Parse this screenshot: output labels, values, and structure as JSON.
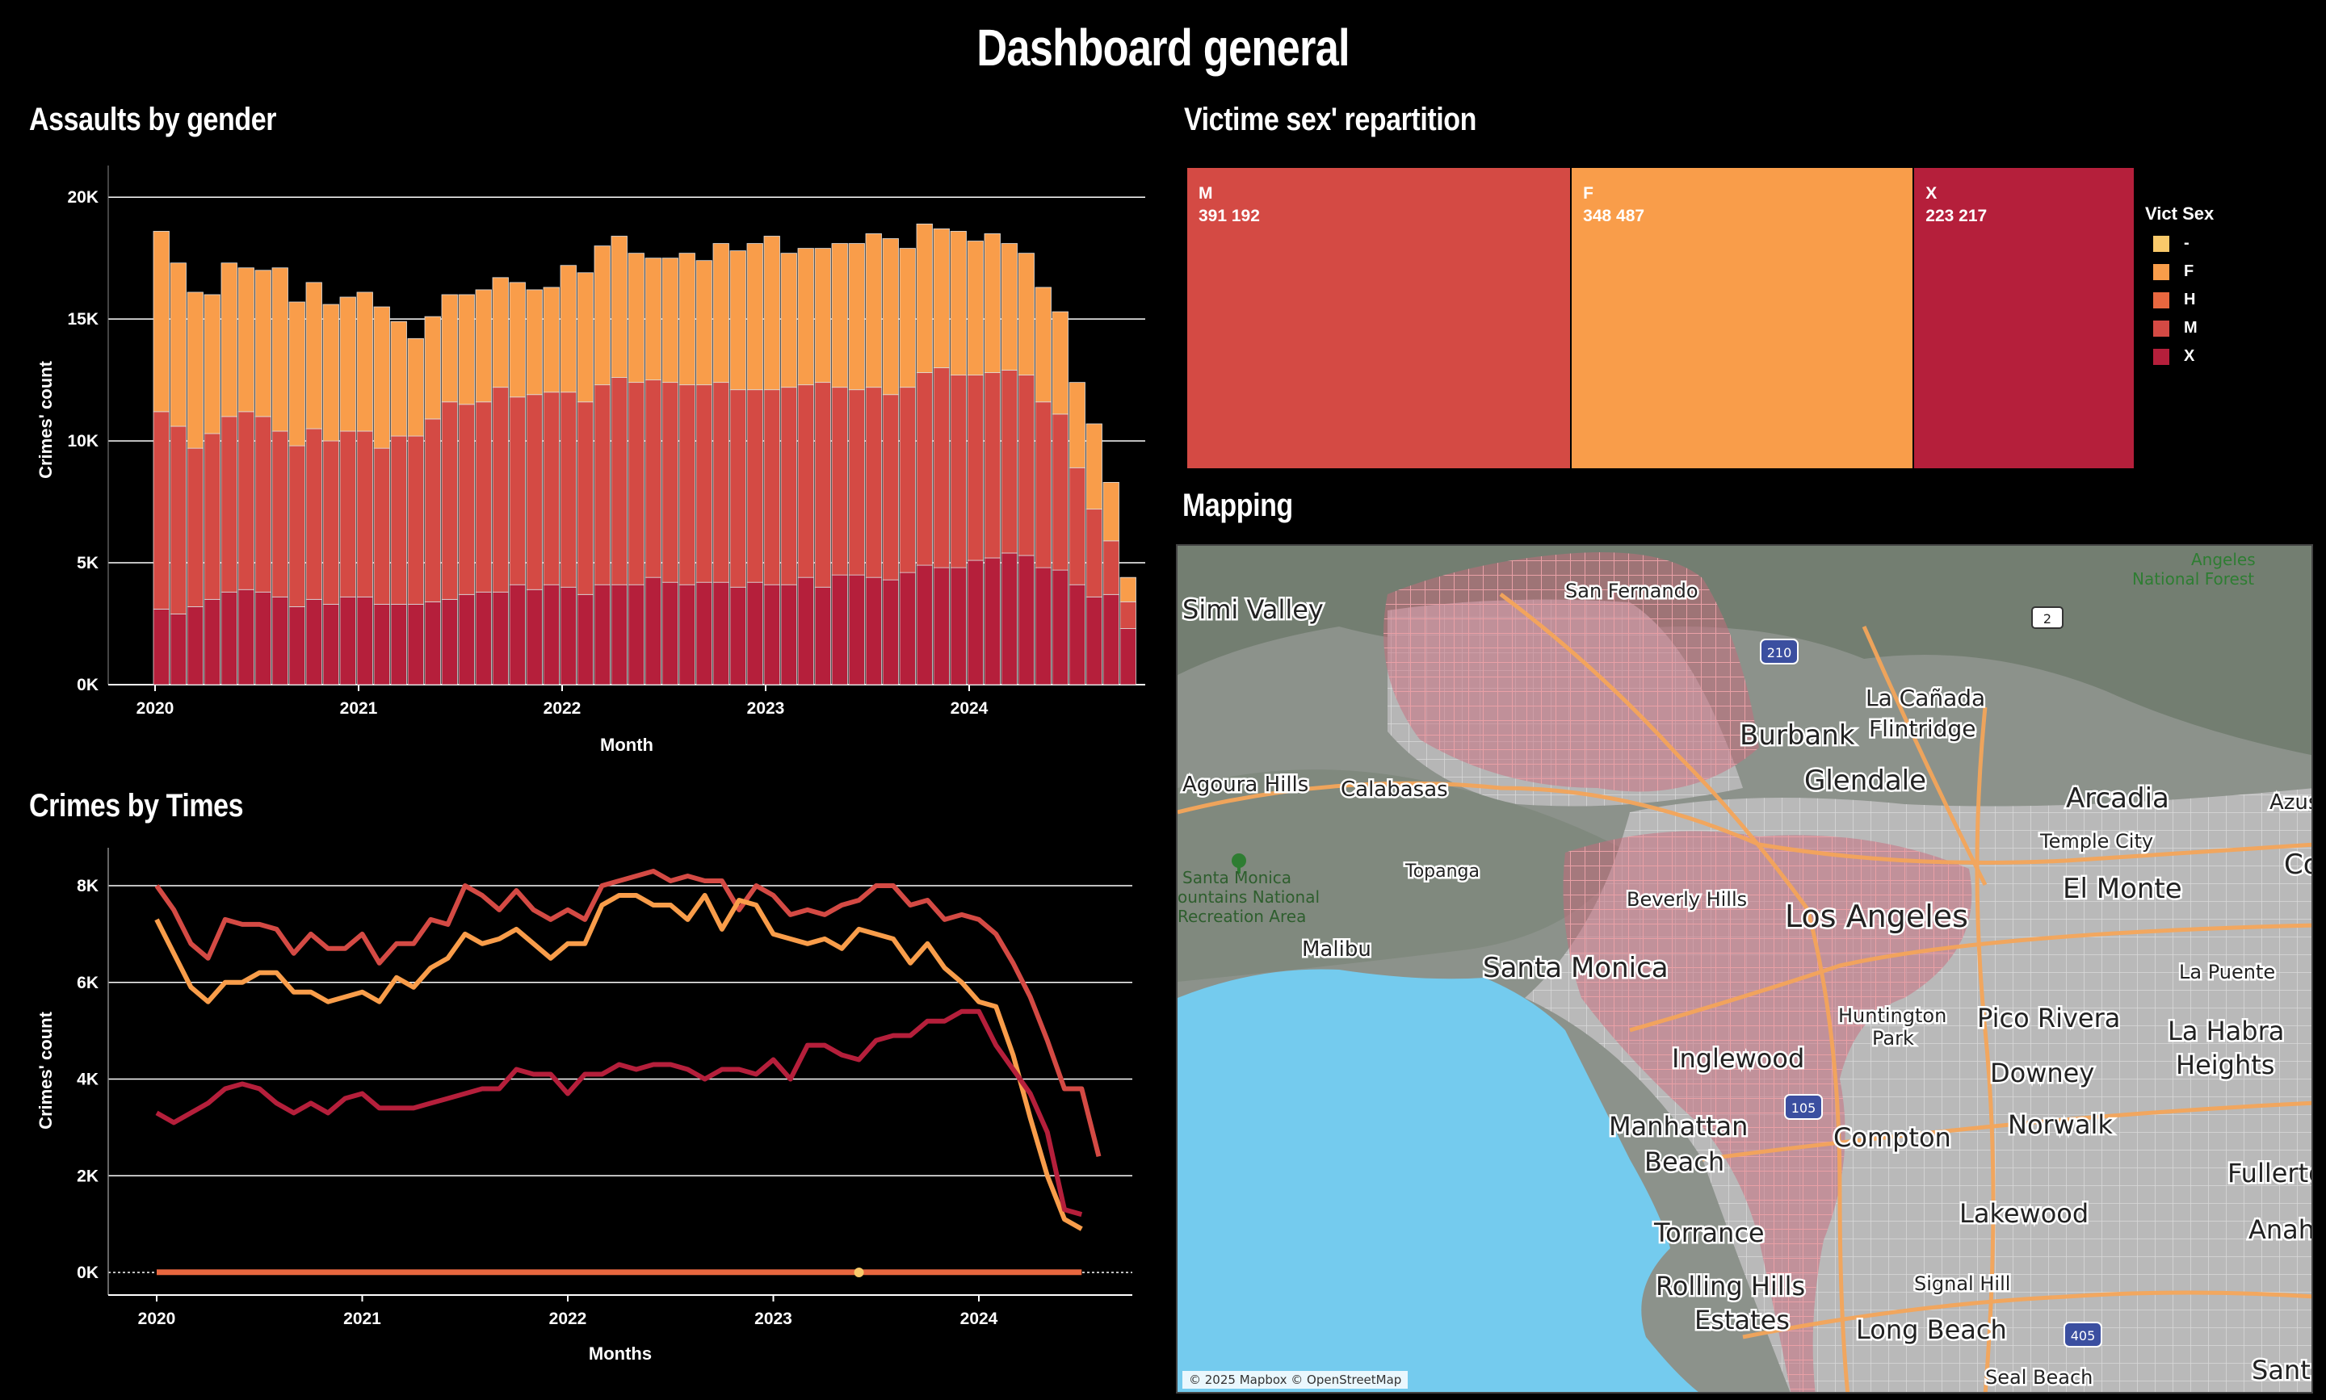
{
  "dashboard": {
    "title": "Dashboard general"
  },
  "panels": {
    "assaults_title": "Assaults by gender",
    "repartition_title": "Victime sex' repartition",
    "mapping_title": "Mapping",
    "times_title": "Crimes by Times"
  },
  "colors": {
    "M": "#d44a44",
    "F": "#f99d4a",
    "X": "#b51f3b",
    "H": "#e8673f",
    "-": "#f9c96a",
    "background": "#000000"
  },
  "chart_data": [
    {
      "type": "bar",
      "stacked": true,
      "title": "Assaults by gender",
      "xlabel": "Month",
      "ylabel": "Crimes' count",
      "ylim": [
        0,
        21000
      ],
      "yticks": [
        "0K",
        "5K",
        "10K",
        "15K",
        "20K"
      ],
      "xticks": [
        "2020",
        "2021",
        "2022",
        "2023",
        "2024"
      ],
      "start_year": 2020,
      "series": [
        {
          "name": "X",
          "color": "#b51f3b",
          "values": [
            3100,
            2900,
            3200,
            3500,
            3800,
            3900,
            3800,
            3600,
            3200,
            3500,
            3300,
            3600,
            3600,
            3300,
            3300,
            3300,
            3400,
            3500,
            3700,
            3800,
            3800,
            4100,
            3900,
            4100,
            4000,
            3700,
            4100,
            4100,
            4100,
            4400,
            4200,
            4100,
            4200,
            4200,
            4000,
            4200,
            4100,
            4100,
            4400,
            4000,
            4500,
            4500,
            4400,
            4300,
            4600,
            4900,
            4800,
            4800,
            5100,
            5200,
            5400,
            5300,
            4800,
            4700,
            4100,
            3600,
            3700,
            2300
          ]
        },
        {
          "name": "M",
          "color": "#d44a44",
          "values": [
            8100,
            7700,
            6500,
            6800,
            7200,
            7300,
            7200,
            6800,
            6600,
            7000,
            6700,
            6800,
            6800,
            6400,
            6900,
            6900,
            7500,
            8100,
            7800,
            7800,
            8400,
            7700,
            8000,
            7900,
            8000,
            7900,
            8200,
            8500,
            8300,
            8100,
            8200,
            8200,
            8100,
            8200,
            8100,
            7900,
            8000,
            8100,
            7900,
            8400,
            7700,
            7600,
            7800,
            7600,
            7600,
            7900,
            8200,
            7900,
            7600,
            7600,
            7500,
            7400,
            6800,
            6400,
            4800,
            3600,
            2200,
            1100
          ]
        },
        {
          "name": "F",
          "color": "#f99d4a",
          "values": [
            7400,
            6700,
            6400,
            5700,
            6300,
            5900,
            6000,
            6700,
            5900,
            6000,
            5600,
            5500,
            5700,
            5800,
            4700,
            4000,
            4200,
            4400,
            4500,
            4600,
            4500,
            4700,
            4300,
            4300,
            5200,
            5300,
            5700,
            5800,
            5300,
            5000,
            5100,
            5400,
            5100,
            5700,
            5700,
            6000,
            6300,
            5500,
            5600,
            5500,
            5900,
            6000,
            6300,
            6400,
            5700,
            6100,
            5700,
            5900,
            5500,
            5700,
            5200,
            5000,
            4700,
            4200,
            3500,
            3500,
            2400,
            1000
          ]
        }
      ]
    },
    {
      "type": "line",
      "title": "Crimes by Times",
      "xlabel": "Months",
      "ylabel": "Crimes' count",
      "ylim": [
        0,
        8800
      ],
      "yticks": [
        "0K",
        "2K",
        "4K",
        "6K",
        "8K"
      ],
      "xticks": [
        "2020",
        "2021",
        "2022",
        "2023",
        "2024"
      ],
      "start_year": 2020,
      "series": [
        {
          "name": "M",
          "color": "#d44a44",
          "values": [
            8000,
            7500,
            6800,
            6500,
            7300,
            7200,
            7200,
            7100,
            6600,
            7000,
            6700,
            6700,
            7000,
            6400,
            6800,
            6800,
            7300,
            7200,
            8000,
            7800,
            7500,
            7900,
            7500,
            7300,
            7500,
            7300,
            8000,
            8100,
            8200,
            8300,
            8100,
            8200,
            8100,
            8100,
            7500,
            8000,
            7800,
            7400,
            7500,
            7400,
            7600,
            7700,
            8000,
            8000,
            7600,
            7700,
            7300,
            7400,
            7300,
            7000,
            6400,
            5700,
            4800,
            3800,
            3800,
            2400
          ]
        },
        {
          "name": "F",
          "color": "#f99d4a",
          "values": [
            7300,
            6600,
            5900,
            5600,
            6000,
            6000,
            6200,
            6200,
            5800,
            5800,
            5600,
            5700,
            5800,
            5600,
            6100,
            5900,
            6300,
            6500,
            7000,
            6800,
            6900,
            7100,
            6800,
            6500,
            6800,
            6800,
            7600,
            7800,
            7800,
            7600,
            7600,
            7300,
            7800,
            7100,
            7700,
            7600,
            7000,
            6900,
            6800,
            6900,
            6700,
            7100,
            7000,
            6900,
            6400,
            6800,
            6300,
            6000,
            5600,
            5500,
            4500,
            3200,
            2000,
            1100,
            900
          ]
        },
        {
          "name": "X",
          "color": "#b51f3b",
          "values": [
            3300,
            3100,
            3300,
            3500,
            3800,
            3900,
            3800,
            3500,
            3300,
            3500,
            3300,
            3600,
            3700,
            3400,
            3400,
            3400,
            3500,
            3600,
            3700,
            3800,
            3800,
            4200,
            4100,
            4100,
            3700,
            4100,
            4100,
            4300,
            4200,
            4300,
            4300,
            4200,
            4000,
            4200,
            4200,
            4100,
            4400,
            4000,
            4700,
            4700,
            4500,
            4400,
            4800,
            4900,
            4900,
            5200,
            5200,
            5400,
            5400,
            4700,
            4200,
            3700,
            2900,
            1300,
            1200
          ]
        },
        {
          "name": "H",
          "color": "#e8673f",
          "values": [
            5,
            5,
            5,
            5,
            5,
            5,
            5,
            5,
            5,
            5,
            5,
            5,
            5,
            5,
            5,
            5,
            5,
            5,
            5,
            5,
            5,
            5,
            5,
            5,
            5,
            5,
            5,
            5,
            5,
            5,
            5,
            5,
            5,
            5,
            5,
            5,
            5,
            5,
            5,
            5,
            5,
            5,
            5,
            5,
            5,
            5,
            5,
            5,
            5,
            5,
            5,
            5,
            5,
            5,
            5
          ]
        },
        {
          "name": "-",
          "color": "#f9c96a",
          "values": [
            0
          ]
        }
      ]
    },
    {
      "type": "treemap",
      "title": "Victime sex' repartition",
      "legend_title": "Vict Sex",
      "items": [
        {
          "label": "M",
          "value": 391192,
          "display": "391 192",
          "color": "#d44a44"
        },
        {
          "label": "F",
          "value": 348487,
          "display": "348 487",
          "color": "#f99d4a"
        },
        {
          "label": "X",
          "value": 223217,
          "display": "223 217",
          "color": "#b51f3b"
        }
      ],
      "legend": [
        {
          "label": "-",
          "color": "#f9c96a"
        },
        {
          "label": "F",
          "color": "#f99d4a"
        },
        {
          "label": "H",
          "color": "#e8673f"
        },
        {
          "label": "M",
          "color": "#d44a44"
        },
        {
          "label": "X",
          "color": "#b51f3b"
        }
      ]
    }
  ],
  "map": {
    "attribution": "© 2025 Mapbox © OpenStreetMap",
    "shield_210": "210",
    "shield_105": "105",
    "shield_405": "405",
    "shield_2": "2",
    "places": {
      "simi_valley": "Simi Valley",
      "san_fernando": "San Fernando",
      "angeles_nf_1": "Angeles",
      "angeles_nf_2": "National Forest",
      "la_canada_1": "La Cañada",
      "la_canada_2": "Flintridge",
      "burbank": "Burbank",
      "glendale": "Glendale",
      "agoura_hills": "Agoura Hills",
      "calabasas": "Calabasas",
      "arcadia": "Arcadia",
      "azusa": "Azusa",
      "temple_city": "Temple City",
      "topanga": "Topanga",
      "santa_monica_mtn_1": "Santa Monica",
      "santa_monica_mtn_2": "ountains National",
      "santa_monica_mtn_3": "Recreation Area",
      "beverly_hills": "Beverly Hills",
      "el_monte": "El Monte",
      "covina": "Covi",
      "los_angeles": "Los Angeles",
      "malibu": "Malibu",
      "santa_monica": "Santa Monica",
      "la_puente": "La Puente",
      "huntington_1": "Huntington",
      "huntington_2": "Park",
      "pico_rivera": "Pico Rivera",
      "la_habra_1": "La Habra",
      "la_habra_2": "Heights",
      "inglewood": "Inglewood",
      "downey": "Downey",
      "manhattan_1": "Manhattan",
      "manhattan_2": "Beach",
      "compton": "Compton",
      "norwalk": "Norwalk",
      "fullerton": "Fullerton",
      "lakewood": "Lakewood",
      "anaheim": "Anahei",
      "torrance": "Torrance",
      "rolling_1": "Rolling Hills",
      "rolling_2": "Estates",
      "signal_hill": "Signal Hill",
      "long_beach": "Long Beach",
      "seal_beach": "Seal Beach",
      "santa_ana": "Sant"
    }
  }
}
